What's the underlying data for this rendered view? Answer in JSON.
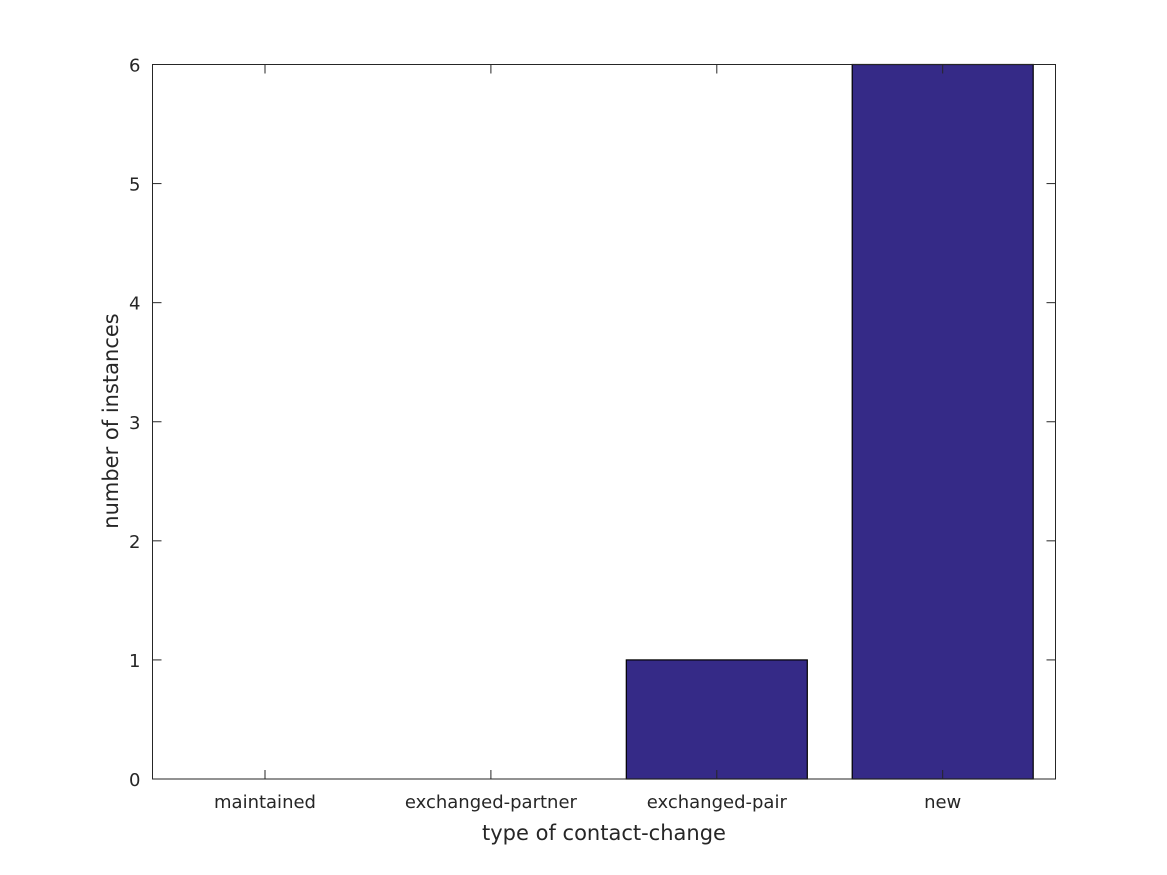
{
  "chart_data": {
    "type": "bar",
    "title": "",
    "xlabel": "type of contact-change",
    "ylabel": "number of instances",
    "categories": [
      "maintained",
      "exchanged-partner",
      "exchanged-pair",
      "new"
    ],
    "values": [
      0,
      0,
      1,
      6
    ],
    "ylim": [
      0,
      6
    ],
    "yticks": [
      "0",
      "1",
      "2",
      "3",
      "4",
      "5",
      "6"
    ],
    "grid": false,
    "bar_color": "#352a87",
    "edge_color": "#000000"
  }
}
